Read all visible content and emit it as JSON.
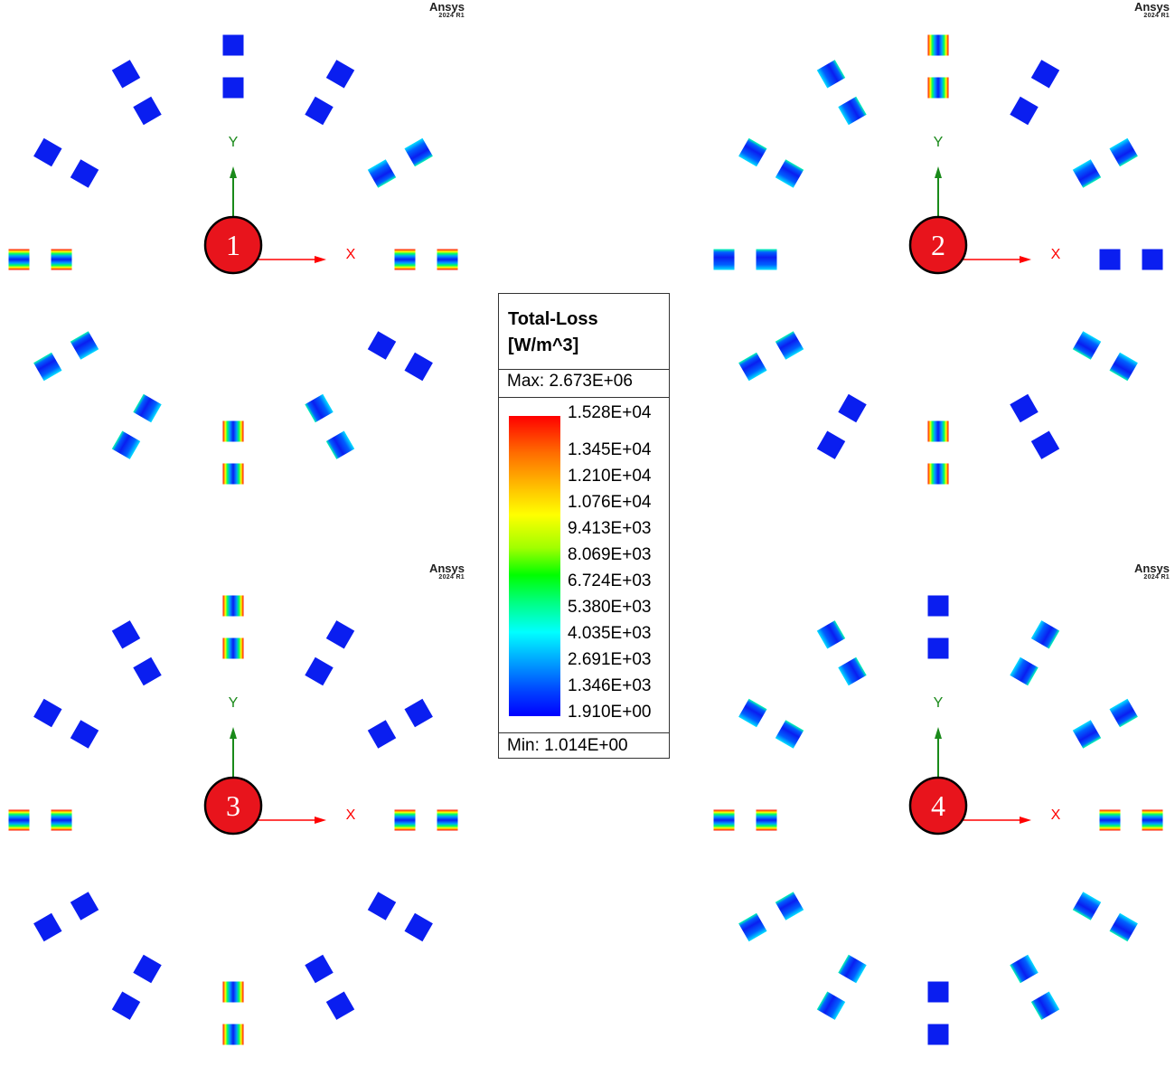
{
  "watermark": {
    "brand": "Ansys",
    "version": "2024 R1"
  },
  "axes": {
    "y_label": "Y",
    "x_label": "X"
  },
  "panels": [
    {
      "number": "1",
      "hot_pairs": [
        3,
        6,
        9
      ],
      "warm_pairs": [
        2,
        5,
        7,
        8
      ]
    },
    {
      "number": "2",
      "hot_pairs": [
        0,
        6
      ],
      "warm_pairs": [
        2,
        4,
        8,
        9,
        10,
        11
      ]
    },
    {
      "number": "3",
      "hot_pairs": [
        0,
        3,
        6,
        9
      ],
      "warm_pairs": []
    },
    {
      "number": "4",
      "hot_pairs": [
        3,
        9
      ],
      "warm_pairs": [
        1,
        2,
        4,
        5,
        7,
        8,
        10,
        11
      ]
    }
  ],
  "legend": {
    "title_line1": "Total-Loss",
    "title_line2": "[W/m^3]",
    "max": "Max: 2.673E+06",
    "min": "Min: 1.014E+00",
    "ticks": [
      "1.528E+04",
      "1.345E+04",
      "1.210E+04",
      "1.076E+04",
      "9.413E+03",
      "8.069E+03",
      "6.724E+03",
      "5.380E+03",
      "4.035E+03",
      "2.691E+03",
      "1.346E+03",
      "1.910E+00"
    ]
  },
  "colors": {
    "blue": "#0a1ef0",
    "red": "#ff0000",
    "green": "#1a8a1a",
    "axis_x": "#ff0000",
    "badge": "#e8141c",
    "badge_border": "#000000"
  }
}
